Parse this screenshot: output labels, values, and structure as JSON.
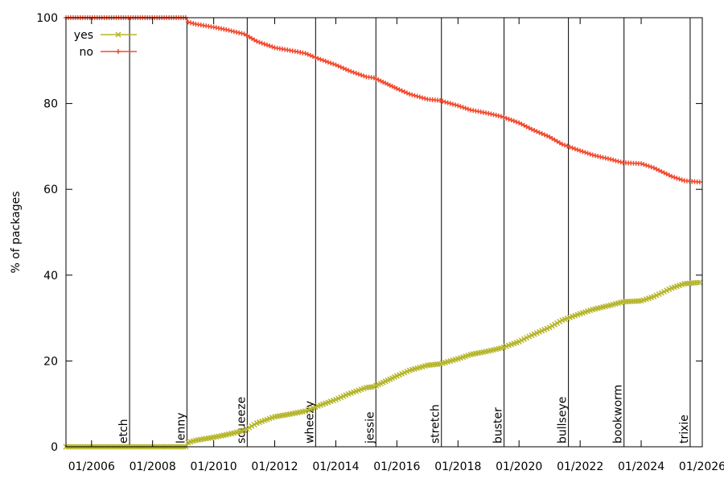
{
  "chart_data": {
    "type": "line",
    "title": "",
    "xlabel": "",
    "ylabel": "% of packages",
    "xlim": [
      "2005-03-01",
      "2026-01-01"
    ],
    "ylim": [
      0,
      100
    ],
    "yticks": [
      0,
      20,
      40,
      60,
      80,
      100
    ],
    "xticks": [
      {
        "date": "2006-01-01",
        "label": "01/2006"
      },
      {
        "date": "2008-01-01",
        "label": "01/2008"
      },
      {
        "date": "2010-01-01",
        "label": "01/2010"
      },
      {
        "date": "2012-01-01",
        "label": "01/2012"
      },
      {
        "date": "2014-01-01",
        "label": "01/2014"
      },
      {
        "date": "2016-01-01",
        "label": "01/2016"
      },
      {
        "date": "2018-01-01",
        "label": "01/2018"
      },
      {
        "date": "2020-01-01",
        "label": "01/2020"
      },
      {
        "date": "2022-01-01",
        "label": "01/2022"
      },
      {
        "date": "2024-01-01",
        "label": "01/2024"
      },
      {
        "date": "2026-01-01",
        "label": "01/2026"
      }
    ],
    "grid": false,
    "legend": "top-left",
    "releases": [
      {
        "name": "etch",
        "date": "2007-04-01"
      },
      {
        "name": "lenny",
        "date": "2009-02-15"
      },
      {
        "name": "squeeze",
        "date": "2011-02-06"
      },
      {
        "name": "wheezy",
        "date": "2013-05-04"
      },
      {
        "name": "jessie",
        "date": "2015-04-25"
      },
      {
        "name": "stretch",
        "date": "2017-06-17"
      },
      {
        "name": "buster",
        "date": "2019-07-06"
      },
      {
        "name": "bullseye",
        "date": "2021-08-14"
      },
      {
        "name": "bookworm",
        "date": "2023-06-10"
      },
      {
        "name": "trixie",
        "date": "2025-08-09"
      }
    ],
    "series": [
      {
        "name": "yes",
        "color": "#b5b52b",
        "marker": "x",
        "points": [
          [
            "2005-03-01",
            0
          ],
          [
            "2009-02-01",
            0
          ],
          [
            "2009-03-01",
            1
          ],
          [
            "2009-06-01",
            1.5
          ],
          [
            "2010-01-01",
            2.2
          ],
          [
            "2010-06-01",
            2.8
          ],
          [
            "2011-01-01",
            3.8
          ],
          [
            "2011-06-01",
            5.5
          ],
          [
            "2012-01-01",
            7
          ],
          [
            "2012-06-01",
            7.5
          ],
          [
            "2013-01-01",
            8.3
          ],
          [
            "2013-06-01",
            9.5
          ],
          [
            "2014-01-01",
            11
          ],
          [
            "2014-06-01",
            12.3
          ],
          [
            "2015-01-01",
            13.8
          ],
          [
            "2015-04-01",
            14
          ],
          [
            "2016-01-01",
            16.5
          ],
          [
            "2016-06-01",
            17.8
          ],
          [
            "2017-01-01",
            19
          ],
          [
            "2017-06-01",
            19.3
          ],
          [
            "2018-01-01",
            20.5
          ],
          [
            "2018-06-01",
            21.5
          ],
          [
            "2019-01-01",
            22.3
          ],
          [
            "2019-06-01",
            23
          ],
          [
            "2020-01-01",
            24.5
          ],
          [
            "2020-06-01",
            26
          ],
          [
            "2021-01-01",
            27.8
          ],
          [
            "2021-06-01",
            29.5
          ],
          [
            "2022-01-01",
            31
          ],
          [
            "2022-06-01",
            32
          ],
          [
            "2023-01-01",
            33
          ],
          [
            "2023-06-01",
            33.8
          ],
          [
            "2024-01-01",
            34
          ],
          [
            "2024-06-01",
            35
          ],
          [
            "2025-01-01",
            37
          ],
          [
            "2025-06-01",
            38
          ],
          [
            "2025-12-01",
            38.3
          ]
        ]
      },
      {
        "name": "no",
        "color": "#f24b30",
        "marker": "+",
        "points": [
          [
            "2005-03-01",
            100
          ],
          [
            "2009-02-01",
            100
          ],
          [
            "2009-03-01",
            99
          ],
          [
            "2009-06-01",
            98.5
          ],
          [
            "2010-01-01",
            97.8
          ],
          [
            "2010-06-01",
            97.2
          ],
          [
            "2011-01-01",
            96.2
          ],
          [
            "2011-06-01",
            94.5
          ],
          [
            "2012-01-01",
            93
          ],
          [
            "2012-06-01",
            92.5
          ],
          [
            "2013-01-01",
            91.7
          ],
          [
            "2013-06-01",
            90.5
          ],
          [
            "2014-01-01",
            89
          ],
          [
            "2014-06-01",
            87.7
          ],
          [
            "2015-01-01",
            86.2
          ],
          [
            "2015-04-01",
            86
          ],
          [
            "2016-01-01",
            83.5
          ],
          [
            "2016-06-01",
            82.2
          ],
          [
            "2017-01-01",
            81
          ],
          [
            "2017-06-01",
            80.7
          ],
          [
            "2018-01-01",
            79.5
          ],
          [
            "2018-06-01",
            78.5
          ],
          [
            "2019-01-01",
            77.7
          ],
          [
            "2019-06-01",
            77
          ],
          [
            "2020-01-01",
            75.5
          ],
          [
            "2020-06-01",
            74
          ],
          [
            "2021-01-01",
            72.2
          ],
          [
            "2021-06-01",
            70.5
          ],
          [
            "2022-01-01",
            69
          ],
          [
            "2022-06-01",
            68
          ],
          [
            "2023-01-01",
            67
          ],
          [
            "2023-06-01",
            66.2
          ],
          [
            "2024-01-01",
            66
          ],
          [
            "2024-06-01",
            65
          ],
          [
            "2025-01-01",
            63
          ],
          [
            "2025-06-01",
            62
          ],
          [
            "2025-12-01",
            61.7
          ]
        ]
      }
    ]
  }
}
